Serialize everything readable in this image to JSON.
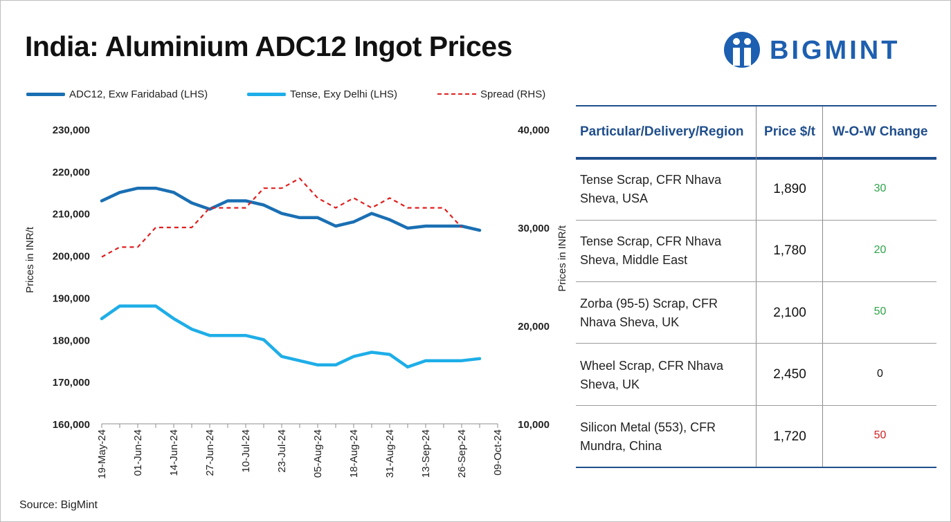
{
  "title": "India: Aluminium ADC12 Ingot Prices",
  "logo": {
    "text": "BIGMINT",
    "color": "#1d5fb0"
  },
  "source": "Source: BigMint",
  "colors": {
    "adc12": "#1a6fb3",
    "tense": "#1eaee8",
    "spread": "#e01e1e",
    "header_blue": "#1f4e8c",
    "positive": "#2ea34a",
    "negative": "#d22020"
  },
  "chart_data": {
    "type": "line",
    "x": [
      "19-May-24",
      "26-May-24",
      "01-Jun-24",
      "08-Jun-24",
      "14-Jun-24",
      "21-Jun-24",
      "27-Jun-24",
      "04-Jul-24",
      "10-Jul-24",
      "17-Jul-24",
      "23-Jul-24",
      "30-Jul-24",
      "05-Aug-24",
      "11-Aug-24",
      "18-Aug-24",
      "25-Aug-24",
      "31-Aug-24",
      "07-Sep-24",
      "13-Sep-24",
      "20-Sep-24",
      "26-Sep-24",
      "03-Oct-24",
      "09-Oct-24"
    ],
    "x_tick_labels": [
      "19-May-24",
      "01-Jun-24",
      "14-Jun-24",
      "27-Jun-24",
      "10-Jul-24",
      "23-Jul-24",
      "05-Aug-24",
      "18-Aug-24",
      "31-Aug-24",
      "13-Sep-24",
      "26-Sep-24",
      "09-Oct-24"
    ],
    "series": [
      {
        "name": "ADC12, Exw Faridabad (LHS)",
        "axis": "left",
        "style": "solid",
        "values": [
          213000,
          215000,
          216000,
          216000,
          215000,
          212500,
          211000,
          213000,
          213000,
          212000,
          210000,
          209000,
          209000,
          207000,
          208000,
          210000,
          208500,
          206500,
          207000,
          207000,
          207000,
          206000,
          null
        ]
      },
      {
        "name": "Tense, Exy Delhi (LHS)",
        "axis": "left",
        "style": "solid",
        "values": [
          185000,
          188000,
          188000,
          188000,
          185000,
          182500,
          181000,
          181000,
          181000,
          180000,
          176000,
          175000,
          174000,
          174000,
          176000,
          177000,
          176500,
          173500,
          175000,
          175000,
          175000,
          175500,
          null
        ]
      },
      {
        "name": "Spread (RHS)",
        "axis": "right",
        "style": "dashed",
        "values": [
          27000,
          28000,
          28000,
          30000,
          30000,
          30000,
          32000,
          32000,
          32000,
          34000,
          34000,
          35000,
          33000,
          32000,
          33000,
          32000,
          33000,
          32000,
          32000,
          32000,
          30000,
          null,
          null
        ]
      }
    ],
    "ylabel": "Prices in INR/t",
    "ylabel_right": "Prices in INR/t",
    "ylim": [
      160000,
      230000
    ],
    "yticks": [
      "230,000",
      "220,000",
      "210,000",
      "200,000",
      "190,000",
      "180,000",
      "170,000",
      "160,000"
    ],
    "ylim_right": [
      10000,
      40000
    ],
    "yticks_right": [
      "40,000",
      "30,000",
      "20,000",
      "10,000"
    ],
    "legend_position": "top",
    "grid": false
  },
  "table": {
    "headers": [
      "Particular/Delivery/Region",
      "Price $/t",
      "W-O-W Change"
    ],
    "rows": [
      {
        "region": " Tense Scrap, CFR Nhava Sheva, USA",
        "price": "1,890",
        "change": "30",
        "sign": "positive"
      },
      {
        "region": "Tense Scrap, CFR Nhava Sheva, Middle East",
        "price": "1,780",
        "change": "20",
        "sign": "positive"
      },
      {
        "region": "Zorba (95-5) Scrap, CFR Nhava Sheva, UK",
        "price": "2,100",
        "change": "50",
        "sign": "positive"
      },
      {
        "region": "Wheel Scrap, CFR Nhava Sheva, UK",
        "price": "2,450",
        "change": "0",
        "sign": "zero"
      },
      {
        "region": "Silicon Metal (553), CFR Mundra, China",
        "price": "1,720",
        "change": "50",
        "sign": "negative"
      }
    ]
  }
}
